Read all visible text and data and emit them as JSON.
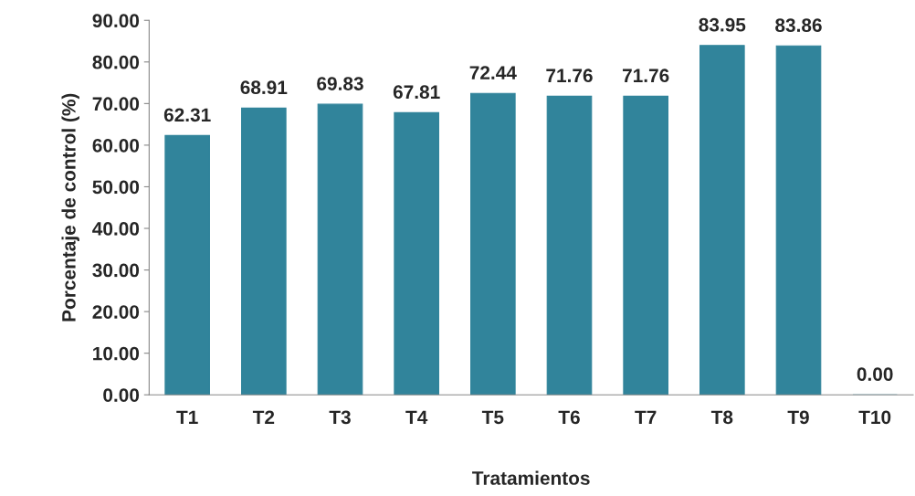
{
  "chart_data": {
    "type": "bar",
    "xlabel": "Tratamientos",
    "ylabel": "Porcentaje de control (%)",
    "categories": [
      "T1",
      "T2",
      "T3",
      "T4",
      "T5",
      "T6",
      "T7",
      "T8",
      "T9",
      "T10"
    ],
    "values": [
      62.31,
      68.91,
      69.83,
      67.81,
      72.44,
      71.76,
      71.76,
      83.95,
      83.86,
      0.0
    ],
    "value_labels": [
      "62.31",
      "68.91",
      "69.83",
      "67.81",
      "72.44",
      "71.76",
      "71.76",
      "83.95",
      "83.86",
      "0.00"
    ],
    "color": "#31849b",
    "ylim": [
      0,
      90
    ],
    "yticks": [
      {
        "value": 0,
        "label": "0.00"
      },
      {
        "value": 10,
        "label": "10.00"
      },
      {
        "value": 20,
        "label": "20.00"
      },
      {
        "value": 30,
        "label": "30.00"
      },
      {
        "value": 40,
        "label": "40.00"
      },
      {
        "value": 50,
        "label": "50.00"
      },
      {
        "value": 60,
        "label": "60.00"
      },
      {
        "value": 70,
        "label": "70.00"
      },
      {
        "value": 80,
        "label": "80.00"
      },
      {
        "value": 90,
        "label": "90.00"
      }
    ],
    "grid": false,
    "legend": false
  }
}
